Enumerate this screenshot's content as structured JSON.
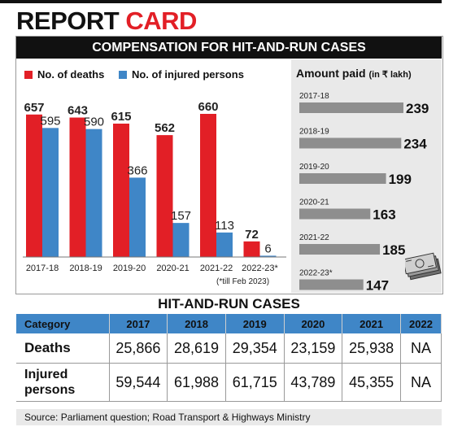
{
  "headline": {
    "part1": "REPORT",
    "part2": "CARD"
  },
  "subheading": "COMPENSATION FOR HIT-AND-RUN CASES",
  "colors": {
    "deaths": "#e21f26",
    "injured": "#3f86c7",
    "amount_bar": "#8e8e8e",
    "dark": "#111111"
  },
  "legend": {
    "deaths": "No. of deaths",
    "injured": "No. of injured persons"
  },
  "amount_title": {
    "main": "Amount paid",
    "unit": "(in ₹ lakh)"
  },
  "chart_data": [
    {
      "type": "bar",
      "categories": [
        "2017-18",
        "2018-19",
        "2019-20",
        "2020-21",
        "2021-22",
        "2022-23*"
      ],
      "series": [
        {
          "name": "No. of deaths",
          "values": [
            657,
            643,
            615,
            562,
            660,
            72
          ]
        },
        {
          "name": "No. of injured persons",
          "values": [
            595,
            590,
            366,
            157,
            113,
            6
          ]
        }
      ],
      "ylim": [
        0,
        700
      ]
    },
    {
      "type": "bar",
      "orientation": "horizontal",
      "title": "Amount paid (in ₹ lakh)",
      "categories": [
        "2017-18",
        "2018-19",
        "2019-20",
        "2020-21",
        "2021-22",
        "2022-23*"
      ],
      "values": [
        239,
        234,
        199,
        163,
        185,
        147
      ]
    }
  ],
  "note": "(*till Feb 2023)",
  "table": {
    "title": "HIT-AND-RUN CASES",
    "headers": [
      "Category",
      "2017",
      "2018",
      "2019",
      "2020",
      "2021",
      "2022"
    ],
    "rows": [
      {
        "label": "Deaths",
        "values": [
          "25,866",
          "28,619",
          "29,354",
          "23,159",
          "25,938",
          "NA"
        ]
      },
      {
        "label": "Injured persons",
        "label_lines": [
          "Injured",
          "persons"
        ],
        "values": [
          "59,544",
          "61,988",
          "61,715",
          "43,789",
          "45,355",
          "NA"
        ]
      }
    ]
  },
  "source": "Source: Parliament question; Road Transport & Highways Ministry"
}
